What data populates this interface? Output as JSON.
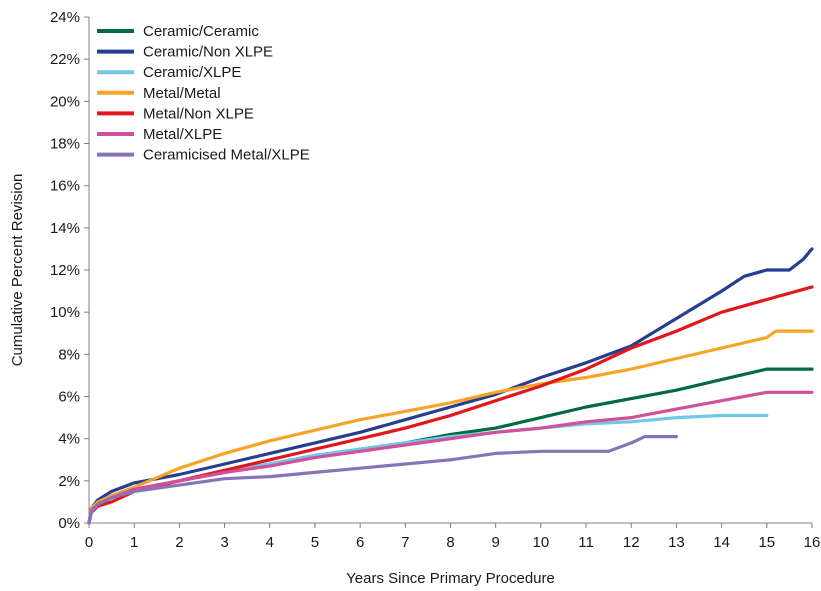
{
  "chart_data": {
    "type": "line",
    "xlabel": "Years Since Primary Procedure",
    "ylabel": "Cumulative Percent Revision",
    "xlim": [
      0,
      16
    ],
    "ylim": [
      0,
      24
    ],
    "x_ticks": [
      0,
      1,
      2,
      3,
      4,
      5,
      6,
      7,
      8,
      9,
      10,
      11,
      12,
      13,
      14,
      15,
      16
    ],
    "y_ticks": [
      {
        "value": 0,
        "label": "0%"
      },
      {
        "value": 2,
        "label": "2%"
      },
      {
        "value": 4,
        "label": "4%"
      },
      {
        "value": 6,
        "label": "6%"
      },
      {
        "value": 8,
        "label": "8%"
      },
      {
        "value": 10,
        "label": "10%"
      },
      {
        "value": 12,
        "label": "12%"
      },
      {
        "value": 14,
        "label": "14%"
      },
      {
        "value": 16,
        "label": "16%"
      },
      {
        "value": 18,
        "label": "18%"
      },
      {
        "value": 20,
        "label": "20%"
      },
      {
        "value": 22,
        "label": "22%"
      },
      {
        "value": 24,
        "label": "24%"
      }
    ],
    "grid": false,
    "legend_position": "top-left",
    "series": [
      {
        "name": "Ceramic/Ceramic",
        "color": "#006b3c",
        "points": [
          [
            0,
            0
          ],
          [
            0.05,
            0.6
          ],
          [
            0.2,
            0.9
          ],
          [
            0.5,
            1.2
          ],
          [
            1,
            1.6
          ],
          [
            2,
            2.0
          ],
          [
            3,
            2.4
          ],
          [
            4,
            2.8
          ],
          [
            5,
            3.2
          ],
          [
            6,
            3.5
          ],
          [
            7,
            3.8
          ],
          [
            8,
            4.2
          ],
          [
            9,
            4.5
          ],
          [
            10,
            5.0
          ],
          [
            11,
            5.5
          ],
          [
            12,
            5.9
          ],
          [
            13,
            6.3
          ],
          [
            14,
            6.8
          ],
          [
            15,
            7.3
          ],
          [
            16,
            7.3
          ]
        ]
      },
      {
        "name": "Ceramic/Non XLPE",
        "color": "#263e8f",
        "points": [
          [
            0,
            0
          ],
          [
            0.05,
            0.7
          ],
          [
            0.2,
            1.1
          ],
          [
            0.5,
            1.5
          ],
          [
            1,
            1.9
          ],
          [
            2,
            2.3
          ],
          [
            3,
            2.8
          ],
          [
            4,
            3.3
          ],
          [
            5,
            3.8
          ],
          [
            6,
            4.3
          ],
          [
            7,
            4.9
          ],
          [
            8,
            5.5
          ],
          [
            9,
            6.1
          ],
          [
            10,
            6.9
          ],
          [
            11,
            7.6
          ],
          [
            12,
            8.4
          ],
          [
            13,
            9.7
          ],
          [
            14,
            11.0
          ],
          [
            14.5,
            11.7
          ],
          [
            15,
            12.0
          ],
          [
            15.5,
            12.0
          ],
          [
            15.8,
            12.5
          ],
          [
            16,
            13.0
          ]
        ]
      },
      {
        "name": "Ceramic/XLPE",
        "color": "#70c8e6",
        "points": [
          [
            0,
            0
          ],
          [
            0.05,
            0.6
          ],
          [
            0.2,
            0.9
          ],
          [
            0.5,
            1.2
          ],
          [
            1,
            1.6
          ],
          [
            2,
            2.0
          ],
          [
            3,
            2.5
          ],
          [
            4,
            2.8
          ],
          [
            5,
            3.2
          ],
          [
            6,
            3.5
          ],
          [
            7,
            3.8
          ],
          [
            8,
            4.1
          ],
          [
            9,
            4.3
          ],
          [
            10,
            4.5
          ],
          [
            11,
            4.7
          ],
          [
            12,
            4.8
          ],
          [
            13,
            5.0
          ],
          [
            14,
            5.1
          ],
          [
            15,
            5.1
          ]
        ]
      },
      {
        "name": "Metal/Metal",
        "color": "#f7a325",
        "points": [
          [
            0,
            0
          ],
          [
            0.05,
            0.7
          ],
          [
            0.2,
            1.0
          ],
          [
            0.5,
            1.3
          ],
          [
            1,
            1.7
          ],
          [
            2,
            2.6
          ],
          [
            3,
            3.3
          ],
          [
            4,
            3.9
          ],
          [
            5,
            4.4
          ],
          [
            6,
            4.9
          ],
          [
            7,
            5.3
          ],
          [
            8,
            5.7
          ],
          [
            9,
            6.2
          ],
          [
            10,
            6.6
          ],
          [
            11,
            6.9
          ],
          [
            12,
            7.3
          ],
          [
            13,
            7.8
          ],
          [
            14,
            8.3
          ],
          [
            15,
            8.8
          ],
          [
            15.2,
            9.1
          ],
          [
            16,
            9.1
          ]
        ]
      },
      {
        "name": "Metal/Non XLPE",
        "color": "#e3161c",
        "points": [
          [
            0,
            0
          ],
          [
            0.05,
            0.5
          ],
          [
            0.2,
            0.8
          ],
          [
            0.5,
            1.0
          ],
          [
            1,
            1.5
          ],
          [
            2,
            2.0
          ],
          [
            3,
            2.5
          ],
          [
            4,
            3.0
          ],
          [
            5,
            3.5
          ],
          [
            6,
            4.0
          ],
          [
            7,
            4.5
          ],
          [
            8,
            5.1
          ],
          [
            9,
            5.8
          ],
          [
            10,
            6.5
          ],
          [
            11,
            7.3
          ],
          [
            12,
            8.3
          ],
          [
            13,
            9.1
          ],
          [
            14,
            10.0
          ],
          [
            15,
            10.6
          ],
          [
            16,
            11.2
          ]
        ]
      },
      {
        "name": "Metal/XLPE",
        "color": "#d24f9b",
        "points": [
          [
            0,
            0
          ],
          [
            0.05,
            0.6
          ],
          [
            0.2,
            0.9
          ],
          [
            0.5,
            1.2
          ],
          [
            1,
            1.6
          ],
          [
            2,
            2.0
          ],
          [
            3,
            2.4
          ],
          [
            4,
            2.7
          ],
          [
            5,
            3.1
          ],
          [
            6,
            3.4
          ],
          [
            7,
            3.7
          ],
          [
            8,
            4.0
          ],
          [
            9,
            4.3
          ],
          [
            10,
            4.5
          ],
          [
            11,
            4.8
          ],
          [
            12,
            5.0
          ],
          [
            13,
            5.4
          ],
          [
            14,
            5.8
          ],
          [
            15,
            6.2
          ],
          [
            16,
            6.2
          ]
        ]
      },
      {
        "name": "Ceramicised Metal/XLPE",
        "color": "#8a72b8",
        "points": [
          [
            0,
            0
          ],
          [
            0.05,
            0.5
          ],
          [
            0.2,
            0.9
          ],
          [
            0.5,
            1.2
          ],
          [
            1,
            1.5
          ],
          [
            2,
            1.8
          ],
          [
            3,
            2.1
          ],
          [
            4,
            2.2
          ],
          [
            5,
            2.4
          ],
          [
            6,
            2.6
          ],
          [
            7,
            2.8
          ],
          [
            8,
            3.0
          ],
          [
            9,
            3.3
          ],
          [
            10,
            3.4
          ],
          [
            11,
            3.4
          ],
          [
            11.5,
            3.4
          ],
          [
            12,
            3.8
          ],
          [
            12.3,
            4.1
          ],
          [
            13,
            4.1
          ]
        ]
      }
    ]
  }
}
